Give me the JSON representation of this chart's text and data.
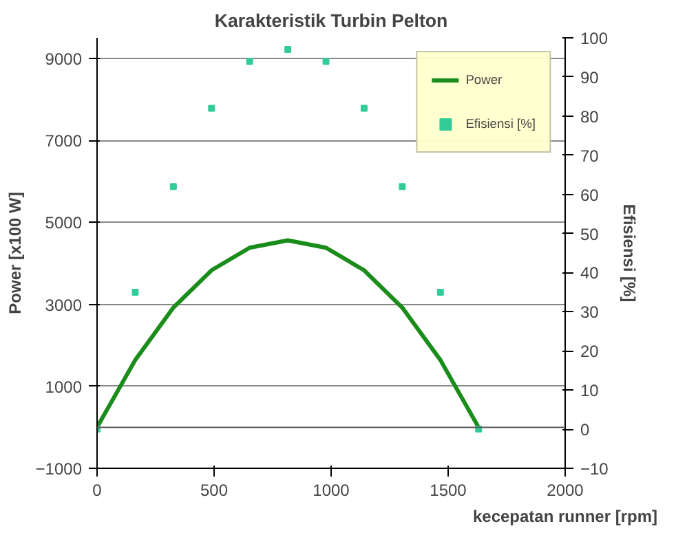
{
  "chart_data": {
    "type": "line",
    "title": "Karakteristik Turbin Pelton",
    "xlabel": "kecepatan runner [rpm]",
    "ylabel": "Power [x100 W]",
    "y2label": "Efisiensi [%]",
    "x": [
      0,
      163,
      326,
      489,
      652,
      815,
      978,
      1141,
      1304,
      1467,
      1630
    ],
    "series": [
      {
        "name": "Power",
        "color": "#1a8c1a",
        "values": [
          0,
          1640,
          2920,
          3830,
          4380,
          4560,
          4380,
          3830,
          2920,
          1640,
          0
        ]
      },
      {
        "name": "Efisiensi [%]",
        "type": "scatter",
        "marker": "square",
        "axis": "y2",
        "color": "#33cc99",
        "values": [
          0,
          35,
          62,
          82,
          94,
          97,
          94,
          82,
          62,
          35,
          0
        ]
      }
    ],
    "xlim": [
      0,
      2000
    ],
    "xticks": [
      0,
      500,
      1000,
      1500,
      2000
    ],
    "ylim": [
      -1000,
      9500
    ],
    "yticks": [
      -1000,
      1000,
      3000,
      5000,
      7000,
      9000
    ],
    "y2lim": [
      -10,
      100
    ],
    "y2ticks": [
      -10,
      0,
      10,
      20,
      30,
      40,
      50,
      60,
      70,
      80,
      90,
      100
    ],
    "grid": "y",
    "legend": "top right",
    "line_style": "solid"
  }
}
